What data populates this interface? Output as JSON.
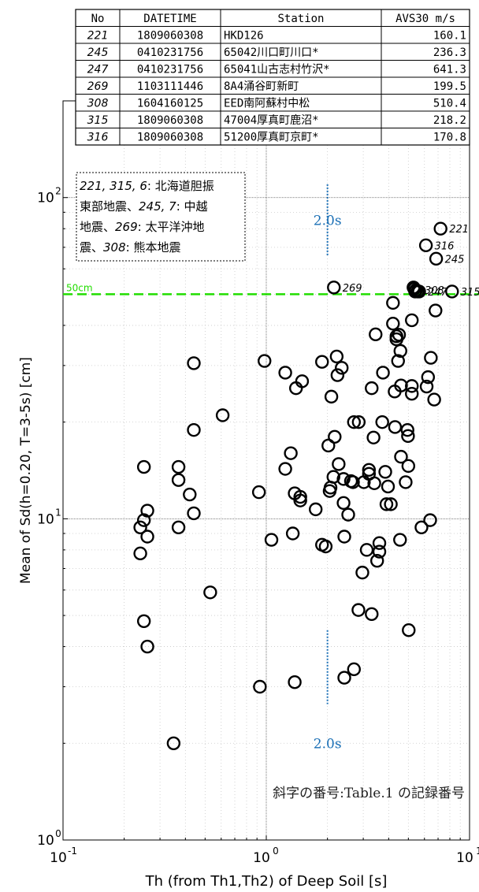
{
  "chart_data": {
    "type": "scatter",
    "title": "",
    "xlabel": "Th (from Th1,Th2) of Deep Soil [s]",
    "ylabel": "Mean of  Sd(h=0.20, T=3-5s) [cm]",
    "xscale": "log",
    "yscale": "log",
    "xlim": [
      0.1,
      10
    ],
    "ylim": [
      1,
      200
    ],
    "grid": true,
    "x_ticks": [
      {
        "base": "10",
        "exp": "-1",
        "value": 0.1
      },
      {
        "base": "10",
        "exp": "0",
        "value": 1
      },
      {
        "base": "10",
        "exp": "1",
        "value": 10
      }
    ],
    "y_ticks": [
      {
        "base": "10",
        "exp": "0",
        "value": 1
      },
      {
        "base": "10",
        "exp": "1",
        "value": 10
      },
      {
        "base": "10",
        "exp": "2",
        "value": 100
      }
    ],
    "reference_line": {
      "label": "50cm",
      "y": 50,
      "color": "#22dd00"
    },
    "vertical_markers": [
      {
        "label": "2.0s",
        "x": 2.0,
        "y_from": 66,
        "y_to": 110,
        "label_y": 85,
        "color": "#1a6fb5"
      },
      {
        "label": "2.0s",
        "x": 2.0,
        "y_from": 2.65,
        "y_to": 4.5,
        "label_y": 2.0,
        "color": "#1a6fb5"
      }
    ],
    "points": [
      {
        "x": 0.24,
        "y": 9.4
      },
      {
        "x": 0.25,
        "y": 9.9
      },
      {
        "x": 0.24,
        "y": 7.8
      },
      {
        "x": 0.26,
        "y": 10.6
      },
      {
        "x": 0.26,
        "y": 8.8
      },
      {
        "x": 0.25,
        "y": 14.5
      },
      {
        "x": 0.25,
        "y": 4.8
      },
      {
        "x": 0.26,
        "y": 4.0
      },
      {
        "x": 0.35,
        "y": 2.0
      },
      {
        "x": 0.37,
        "y": 14.5
      },
      {
        "x": 0.37,
        "y": 13.2
      },
      {
        "x": 0.37,
        "y": 9.4
      },
      {
        "x": 0.42,
        "y": 11.9
      },
      {
        "x": 0.44,
        "y": 18.9
      },
      {
        "x": 0.44,
        "y": 10.4
      },
      {
        "x": 0.44,
        "y": 30.5
      },
      {
        "x": 0.53,
        "y": 5.9
      },
      {
        "x": 0.61,
        "y": 21.0
      },
      {
        "x": 0.92,
        "y": 12.1
      },
      {
        "x": 0.93,
        "y": 3.0
      },
      {
        "x": 0.98,
        "y": 31.0
      },
      {
        "x": 1.06,
        "y": 8.6
      },
      {
        "x": 1.24,
        "y": 28.5
      },
      {
        "x": 1.24,
        "y": 14.3
      },
      {
        "x": 1.32,
        "y": 16.0
      },
      {
        "x": 1.35,
        "y": 9.0
      },
      {
        "x": 1.38,
        "y": 3.1
      },
      {
        "x": 1.38,
        "y": 12.0
      },
      {
        "x": 1.4,
        "y": 25.5
      },
      {
        "x": 1.47,
        "y": 11.4
      },
      {
        "x": 1.5,
        "y": 26.8
      },
      {
        "x": 1.47,
        "y": 11.7
      },
      {
        "x": 1.75,
        "y": 10.7
      },
      {
        "x": 1.88,
        "y": 30.8
      },
      {
        "x": 1.88,
        "y": 8.3
      },
      {
        "x": 1.96,
        "y": 8.2
      },
      {
        "x": 2.02,
        "y": 16.9
      },
      {
        "x": 2.05,
        "y": 12.2
      },
      {
        "x": 2.07,
        "y": 12.5
      },
      {
        "x": 2.09,
        "y": 24.0
      },
      {
        "x": 2.14,
        "y": 13.5
      },
      {
        "x": 2.17,
        "y": 18.0
      },
      {
        "x": 2.22,
        "y": 32.0
      },
      {
        "x": 2.24,
        "y": 28.0
      },
      {
        "x": 2.27,
        "y": 14.8
      },
      {
        "x": 2.35,
        "y": 29.5
      },
      {
        "x": 2.4,
        "y": 11.2
      },
      {
        "x": 2.4,
        "y": 13.3
      },
      {
        "x": 2.42,
        "y": 8.8
      },
      {
        "x": 2.42,
        "y": 3.2
      },
      {
        "x": 2.53,
        "y": 10.3
      },
      {
        "x": 2.61,
        "y": 13.1
      },
      {
        "x": 2.67,
        "y": 13.0
      },
      {
        "x": 2.7,
        "y": 20.0
      },
      {
        "x": 2.7,
        "y": 3.4
      },
      {
        "x": 2.85,
        "y": 20.0
      },
      {
        "x": 2.84,
        "y": 5.2
      },
      {
        "x": 2.97,
        "y": 6.8
      },
      {
        "x": 3.02,
        "y": 13.0
      },
      {
        "x": 3.12,
        "y": 8.0
      },
      {
        "x": 3.2,
        "y": 14.2
      },
      {
        "x": 3.2,
        "y": 13.8
      },
      {
        "x": 3.3,
        "y": 25.5
      },
      {
        "x": 3.3,
        "y": 5.05
      },
      {
        "x": 3.37,
        "y": 17.9
      },
      {
        "x": 3.4,
        "y": 12.9
      },
      {
        "x": 3.45,
        "y": 37.5
      },
      {
        "x": 3.51,
        "y": 7.4
      },
      {
        "x": 3.6,
        "y": 8.4
      },
      {
        "x": 3.6,
        "y": 7.9
      },
      {
        "x": 3.72,
        "y": 20.0
      },
      {
        "x": 3.75,
        "y": 28.5
      },
      {
        "x": 3.85,
        "y": 14.0
      },
      {
        "x": 3.9,
        "y": 11.1
      },
      {
        "x": 3.97,
        "y": 12.6
      },
      {
        "x": 4.1,
        "y": 11.1
      },
      {
        "x": 4.2,
        "y": 47.0
      },
      {
        "x": 4.2,
        "y": 40.5
      },
      {
        "x": 4.28,
        "y": 24.9
      },
      {
        "x": 4.3,
        "y": 19.3
      },
      {
        "x": 4.37,
        "y": 37.0
      },
      {
        "x": 4.37,
        "y": 36.2
      },
      {
        "x": 4.45,
        "y": 31.0
      },
      {
        "x": 4.5,
        "y": 37.4
      },
      {
        "x": 4.57,
        "y": 33.3
      },
      {
        "x": 4.55,
        "y": 8.6
      },
      {
        "x": 4.6,
        "y": 26.0
      },
      {
        "x": 4.6,
        "y": 15.6
      },
      {
        "x": 4.85,
        "y": 13.0
      },
      {
        "x": 4.95,
        "y": 18.9
      },
      {
        "x": 4.98,
        "y": 18.1
      },
      {
        "x": 5.0,
        "y": 14.6
      },
      {
        "x": 5.02,
        "y": 4.5
      },
      {
        "x": 5.2,
        "y": 25.9
      },
      {
        "x": 5.2,
        "y": 24.5
      },
      {
        "x": 5.2,
        "y": 41.5
      },
      {
        "x": 5.3,
        "y": 52.5
      },
      {
        "x": 5.35,
        "y": 52.0
      },
      {
        "x": 5.4,
        "y": 51.0
      },
      {
        "x": 5.55,
        "y": 51.0
      },
      {
        "x": 5.8,
        "y": 9.4
      },
      {
        "x": 6.15,
        "y": 25.8
      },
      {
        "x": 6.25,
        "y": 27.6
      },
      {
        "x": 6.4,
        "y": 9.9
      },
      {
        "x": 6.45,
        "y": 31.7
      },
      {
        "x": 6.7,
        "y": 23.5
      },
      {
        "x": 6.8,
        "y": 44.5
      },
      {
        "x": 7.2,
        "y": 80.0,
        "label": "221"
      },
      {
        "x": 6.1,
        "y": 71.0,
        "label": "316"
      },
      {
        "x": 6.85,
        "y": 64.5,
        "label": "245"
      },
      {
        "x": 2.15,
        "y": 52.5,
        "label": "269"
      },
      {
        "x": 5.45,
        "y": 51.5,
        "label": "308"
      },
      {
        "x": 5.65,
        "y": 51.0,
        "label": "247"
      },
      {
        "x": 8.2,
        "y": 51.0,
        "label": "315"
      }
    ],
    "table": {
      "headers": [
        "No",
        "DATETIME",
        "Station",
        "AVS30 m/s"
      ],
      "rows": [
        [
          "221",
          "1809060308",
          "HKD126",
          "160.1"
        ],
        [
          "245",
          "0410231756",
          "65042川口町川口*",
          "236.3"
        ],
        [
          "247",
          "0410231756",
          "65041山古志村竹沢*",
          "641.3"
        ],
        [
          "269",
          "1103111446",
          "8A4涌谷町新町",
          "199.5"
        ],
        [
          "308",
          "1604160125",
          "EED南阿蘇村中松",
          "510.4"
        ],
        [
          "315",
          "1809060308",
          "47004厚真町鹿沼*",
          "218.2"
        ],
        [
          "316",
          "1809060308",
          "51200厚真町京町*",
          "170.8"
        ]
      ]
    },
    "note_box": {
      "lines": [
        [
          {
            "t": "221, 315, 6",
            "i": true
          },
          {
            "t": ": 北海道胆振",
            "i": false
          }
        ],
        [
          {
            "t": "東部地震、",
            "i": false
          },
          {
            "t": "245, 7",
            "i": true
          },
          {
            "t": ": 中越",
            "i": false
          }
        ],
        [
          {
            "t": "地震、",
            "i": false
          },
          {
            "t": "269",
            "i": true
          },
          {
            "t": ": 太平洋沖地",
            "i": false
          }
        ],
        [
          {
            "t": "震、",
            "i": false
          },
          {
            "t": "308",
            "i": true
          },
          {
            "t": ": 熊本地震",
            "i": false
          }
        ]
      ]
    },
    "footnote": "斜字の番号:Table.1 の記録番号"
  }
}
